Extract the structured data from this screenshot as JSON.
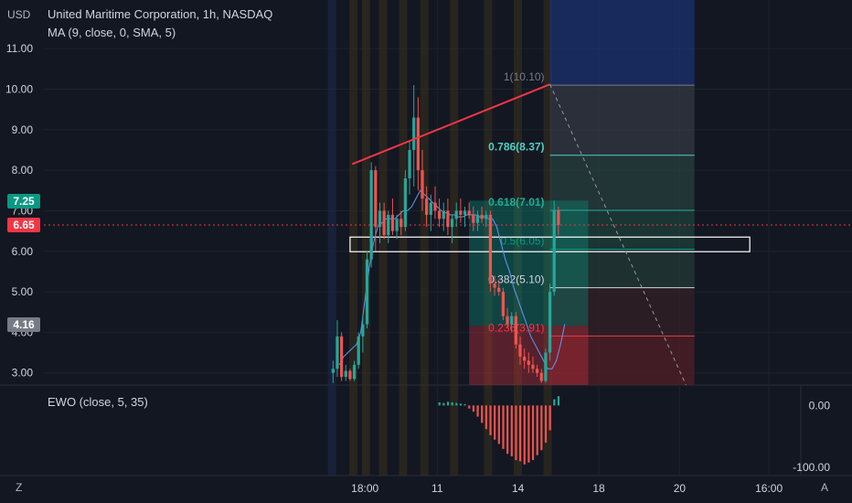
{
  "header": {
    "currency": "USD",
    "title": "United Maritime Corporation, 1h, NASDAQ",
    "ma_legend": "MA (9, close, 0, SMA, 5)",
    "ewo_legend": "EWO (close, 5, 35)",
    "z_button": "Z",
    "a_button": "A"
  },
  "price_tags": [
    {
      "label": "7.25",
      "value": 7.25,
      "color": "#089981"
    },
    {
      "label": "6.65",
      "value": 6.65,
      "color": "#f23645"
    },
    {
      "label": "4.16",
      "value": 4.16,
      "color": "#787b86"
    }
  ],
  "chart_data": {
    "type": "candlestick",
    "y_axis": {
      "ticks": [
        "11.00",
        "10.00",
        "9.00",
        "8.00",
        "7.00",
        "6.00",
        "5.00",
        "4.00",
        "3.00"
      ],
      "tick_values": [
        11,
        10,
        9,
        8,
        7,
        6,
        5,
        4,
        3
      ],
      "range": [
        2.7,
        12.2
      ],
      "side": "left"
    },
    "x_axis": {
      "ticks": [
        "18:00",
        "11",
        "14",
        "18",
        "20",
        "16:00"
      ],
      "tick_positions": [
        7.5,
        24.5,
        43.5,
        62.5,
        81.5,
        102.5
      ],
      "range": [
        -68,
        110
      ]
    },
    "current_price": 6.65,
    "candles": [
      {
        "o": 3.0,
        "h": 3.3,
        "l": 2.75,
        "c": 3.1
      },
      {
        "o": 3.1,
        "h": 4.3,
        "l": 2.9,
        "c": 3.9
      },
      {
        "o": 3.9,
        "h": 4.0,
        "l": 2.8,
        "c": 2.9
      },
      {
        "o": 2.9,
        "h": 3.2,
        "l": 2.8,
        "c": 3.05
      },
      {
        "o": 3.05,
        "h": 3.1,
        "l": 2.8,
        "c": 2.85
      },
      {
        "o": 2.85,
        "h": 3.3,
        "l": 2.8,
        "c": 3.2
      },
      {
        "o": 3.2,
        "h": 4.0,
        "l": 3.1,
        "c": 3.9
      },
      {
        "o": 3.9,
        "h": 4.4,
        "l": 3.5,
        "c": 4.2
      },
      {
        "o": 4.2,
        "h": 6.0,
        "l": 4.1,
        "c": 5.8
      },
      {
        "o": 5.8,
        "h": 8.2,
        "l": 5.6,
        "c": 8.0
      },
      {
        "o": 8.0,
        "h": 8.1,
        "l": 6.0,
        "c": 6.6
      },
      {
        "o": 6.6,
        "h": 7.2,
        "l": 6.2,
        "c": 7.0
      },
      {
        "o": 7.0,
        "h": 7.2,
        "l": 6.3,
        "c": 6.4
      },
      {
        "o": 6.4,
        "h": 7.0,
        "l": 6.2,
        "c": 6.9
      },
      {
        "o": 6.9,
        "h": 7.3,
        "l": 6.4,
        "c": 6.5
      },
      {
        "o": 6.5,
        "h": 6.9,
        "l": 6.3,
        "c": 6.8
      },
      {
        "o": 6.8,
        "h": 7.0,
        "l": 6.4,
        "c": 6.6
      },
      {
        "o": 6.6,
        "h": 8.0,
        "l": 6.5,
        "c": 7.8
      },
      {
        "o": 7.8,
        "h": 8.7,
        "l": 7.4,
        "c": 8.5
      },
      {
        "o": 8.5,
        "h": 10.1,
        "l": 7.6,
        "c": 9.3
      },
      {
        "o": 9.3,
        "h": 9.8,
        "l": 7.5,
        "c": 8.0
      },
      {
        "o": 8.0,
        "h": 8.5,
        "l": 7.0,
        "c": 7.3
      },
      {
        "o": 7.3,
        "h": 7.6,
        "l": 6.6,
        "c": 6.9
      },
      {
        "o": 6.9,
        "h": 7.4,
        "l": 6.5,
        "c": 7.2
      },
      {
        "o": 7.2,
        "h": 7.6,
        "l": 6.8,
        "c": 7.0
      },
      {
        "o": 7.0,
        "h": 7.3,
        "l": 6.6,
        "c": 6.8
      },
      {
        "o": 6.8,
        "h": 7.2,
        "l": 6.5,
        "c": 7.0
      },
      {
        "o": 7.0,
        "h": 7.3,
        "l": 6.4,
        "c": 6.6
      },
      {
        "o": 6.6,
        "h": 6.9,
        "l": 6.2,
        "c": 6.8
      },
      {
        "o": 6.8,
        "h": 7.2,
        "l": 6.6,
        "c": 7.0
      },
      {
        "o": 7.0,
        "h": 7.3,
        "l": 6.7,
        "c": 6.9
      },
      {
        "o": 6.9,
        "h": 7.1,
        "l": 6.6,
        "c": 7.0
      },
      {
        "o": 7.0,
        "h": 7.2,
        "l": 6.8,
        "c": 6.9
      },
      {
        "o": 6.9,
        "h": 7.1,
        "l": 6.5,
        "c": 6.7
      },
      {
        "o": 6.7,
        "h": 7.0,
        "l": 6.5,
        "c": 6.9
      },
      {
        "o": 6.9,
        "h": 7.1,
        "l": 6.7,
        "c": 6.8
      },
      {
        "o": 6.8,
        "h": 7.0,
        "l": 6.6,
        "c": 6.9
      },
      {
        "o": 6.9,
        "h": 7.0,
        "l": 5.0,
        "c": 5.2
      },
      {
        "o": 5.2,
        "h": 5.4,
        "l": 4.9,
        "c": 5.1
      },
      {
        "o": 5.1,
        "h": 5.3,
        "l": 4.9,
        "c": 5.0
      },
      {
        "o": 5.0,
        "h": 5.1,
        "l": 4.3,
        "c": 4.4
      },
      {
        "o": 4.4,
        "h": 4.6,
        "l": 4.1,
        "c": 4.2
      },
      {
        "o": 4.2,
        "h": 4.5,
        "l": 4.0,
        "c": 4.4
      },
      {
        "o": 4.4,
        "h": 4.5,
        "l": 3.6,
        "c": 3.7
      },
      {
        "o": 3.7,
        "h": 3.9,
        "l": 3.2,
        "c": 3.4
      },
      {
        "o": 3.4,
        "h": 3.6,
        "l": 3.1,
        "c": 3.3
      },
      {
        "o": 3.3,
        "h": 3.5,
        "l": 3.0,
        "c": 3.2
      },
      {
        "o": 3.2,
        "h": 3.4,
        "l": 3.0,
        "c": 3.1
      },
      {
        "o": 3.1,
        "h": 3.2,
        "l": 2.9,
        "c": 3.0
      },
      {
        "o": 3.0,
        "h": 3.1,
        "l": 2.75,
        "c": 2.8
      },
      {
        "o": 2.8,
        "h": 3.6,
        "l": 2.75,
        "c": 3.5
      },
      {
        "o": 3.5,
        "h": 5.2,
        "l": 3.3,
        "c": 5.0
      },
      {
        "o": 5.0,
        "h": 7.25,
        "l": 4.9,
        "c": 7.0
      },
      {
        "o": 7.0,
        "h": 7.1,
        "l": 6.4,
        "c": 6.65
      }
    ],
    "candle_x_start": 0,
    "ma_series": [
      3.2,
      3.4,
      3.5,
      3.6,
      3.7,
      4.0,
      4.8,
      5.6,
      6.2,
      6.6,
      6.7,
      6.8,
      6.8,
      6.8,
      6.9,
      7.0,
      7.0,
      7.1,
      7.3,
      7.5,
      7.4,
      7.3,
      7.2,
      7.1,
      7.0,
      6.95,
      6.9,
      6.9,
      6.85,
      6.85,
      6.9,
      6.9,
      6.9,
      6.85,
      6.85,
      6.8,
      6.8,
      6.6,
      6.2,
      5.8,
      5.5,
      5.1,
      4.8,
      4.5,
      4.2,
      3.9,
      3.7,
      3.5,
      3.3,
      3.1,
      3.1,
      3.3,
      3.7,
      4.2
    ],
    "ewo_values": [
      0,
      0,
      0,
      0,
      0,
      0,
      0,
      0,
      0,
      0,
      0,
      0,
      0,
      0,
      0,
      0,
      0,
      0,
      0,
      0,
      0,
      0,
      0,
      0,
      0,
      5,
      4,
      6,
      5,
      4,
      3,
      2,
      -5,
      -10,
      -18,
      -28,
      -38,
      -48,
      -55,
      -62,
      -70,
      -78,
      -82,
      -88,
      -90,
      -95,
      -92,
      -88,
      -80,
      -72,
      -60,
      -40,
      10,
      15
    ],
    "ewo_axis": {
      "ticks": [
        "0.00",
        "-100.00"
      ],
      "tick_values": [
        0,
        -100
      ],
      "range": [
        -110,
        30
      ]
    },
    "fib": {
      "levels": [
        {
          "ratio_label": "1(10.10)",
          "value": 10.1,
          "color": "#787b86"
        },
        {
          "ratio_label": "0.786(8.37)",
          "value": 8.37,
          "color": "#4dd0c4"
        },
        {
          "ratio_label": "0.618(7.01)",
          "value": 7.01,
          "color": "#22ab94"
        },
        {
          "ratio_label": "0.5(6.05)",
          "value": 6.05,
          "color": "#089981"
        },
        {
          "ratio_label": "0.382(5.10)",
          "value": 5.1,
          "color": "#d1d4dc"
        },
        {
          "ratio_label": "0.236(3.91)",
          "value": 3.91,
          "color": "#f23645"
        }
      ],
      "x_range": [
        51,
        85
      ]
    },
    "position": {
      "entry": 4.16,
      "target": 7.25,
      "stop": 2.7,
      "x_range": [
        32,
        60
      ]
    },
    "trend_line": [
      {
        "x": 4.5,
        "y": 8.15
      },
      {
        "x": 51,
        "y": 10.12
      }
    ],
    "projection_line": [
      {
        "x": 51,
        "y": 10.12
      },
      {
        "x": 83,
        "y": 2.7
      }
    ],
    "zone": {
      "top": 6.35,
      "bottom": 5.99,
      "x_range": [
        4,
        98
      ]
    },
    "grid": true
  },
  "colors": {
    "up": "#26a69a",
    "down": "#ef5350",
    "ma": "#5b9cf6",
    "background": "#131722"
  }
}
